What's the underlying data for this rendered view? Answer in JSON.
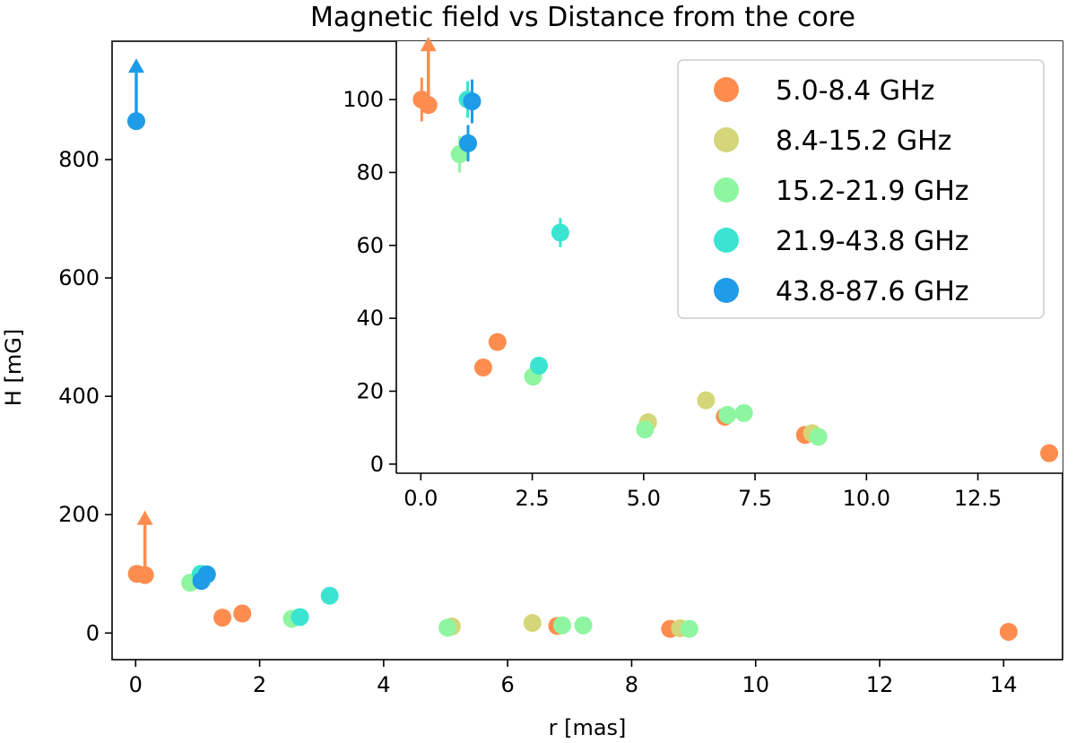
{
  "chart_data": [
    {
      "id": "main",
      "type": "scatter",
      "title": "Magnetic field vs Distance from the core",
      "xlabel": "r [mas]",
      "ylabel": "H [mG]",
      "xlim": [
        -0.38,
        14.95
      ],
      "ylim": [
        -45,
        1000
      ],
      "xticks": [
        0,
        2,
        4,
        6,
        8,
        10,
        12,
        14
      ],
      "yticks": [
        0,
        200,
        400,
        600,
        800
      ],
      "series": [
        {
          "name": "5.0-8.4 GHz",
          "color": "#fd8d4e",
          "points": [
            [
              0.02,
              100
            ],
            [
              0.15,
              98
            ],
            [
              1.4,
              26
            ],
            [
              1.72,
              33
            ],
            [
              6.8,
              12
            ],
            [
              8.62,
              7
            ],
            [
              14.08,
              2
            ]
          ],
          "limits": [
            [
              0.15,
              101
            ]
          ]
        },
        {
          "name": "8.4-15.2 GHz",
          "color": "#d4d67a",
          "points": [
            [
              5.1,
              11
            ],
            [
              6.4,
              17
            ],
            [
              8.78,
              8
            ]
          ]
        },
        {
          "name": "15.2-21.9 GHz",
          "color": "#8ef6a0",
          "points": [
            [
              0.88,
              85
            ],
            [
              2.52,
              24
            ],
            [
              5.03,
              9
            ],
            [
              6.88,
              13
            ],
            [
              7.22,
              13
            ],
            [
              8.93,
              7
            ]
          ]
        },
        {
          "name": "21.9-43.8 GHz",
          "color": "#3be4d0",
          "points": [
            [
              1.05,
              100
            ],
            [
              2.65,
              27
            ],
            [
              3.13,
              63
            ]
          ]
        },
        {
          "name": "43.8-87.6 GHz",
          "color": "#1e9ce8",
          "points": [
            [
              0.01,
              865
            ],
            [
              1.06,
              88
            ],
            [
              1.15,
              99
            ]
          ],
          "limits": [
            [
              0.01,
              865
            ]
          ]
        }
      ]
    },
    {
      "id": "inset",
      "type": "scatter",
      "xlim": [
        -0.55,
        14.4
      ],
      "ylim": [
        -2.5,
        116
      ],
      "xticks": [
        0.0,
        2.5,
        5.0,
        7.5,
        10.0,
        12.5
      ],
      "xtick_labels": [
        "0.0",
        "2.5",
        "5.0",
        "7.5",
        "10.0",
        "12.5"
      ],
      "yticks": [
        0,
        20,
        40,
        60,
        80,
        100
      ],
      "legend_position": "upper right",
      "series": [
        {
          "name": "5.0-8.4 GHz",
          "color": "#fd8d4e",
          "points": [
            [
              0.02,
              100
            ],
            [
              0.17,
              98.5
            ],
            [
              1.4,
              26.5
            ],
            [
              1.72,
              33.5
            ],
            [
              6.82,
              13
            ],
            [
              8.62,
              8
            ],
            [
              14.1,
              3
            ]
          ],
          "limits": [
            [
              0.17,
              100
            ]
          ],
          "errors": [
            [
              0.02,
              100,
              6
            ]
          ]
        },
        {
          "name": "8.4-15.2 GHz",
          "color": "#d4d67a",
          "points": [
            [
              5.1,
              11.5
            ],
            [
              6.4,
              17.5
            ],
            [
              8.78,
              8.5
            ]
          ]
        },
        {
          "name": "15.2-21.9 GHz",
          "color": "#8ef6a0",
          "points": [
            [
              0.87,
              85
            ],
            [
              2.52,
              24
            ],
            [
              5.03,
              9.5
            ],
            [
              6.88,
              13.5
            ],
            [
              7.25,
              14
            ],
            [
              8.92,
              7.5
            ]
          ],
          "errors": [
            [
              0.87,
              85,
              5
            ]
          ]
        },
        {
          "name": "21.9-43.8 GHz",
          "color": "#3be4d0",
          "points": [
            [
              1.05,
              100
            ],
            [
              2.65,
              27
            ],
            [
              3.13,
              63.5
            ]
          ],
          "errors": [
            [
              1.05,
              100,
              5
            ],
            [
              3.13,
              63.5,
              4
            ]
          ]
        },
        {
          "name": "43.8-87.6 GHz",
          "color": "#1e9ce8",
          "points": [
            [
              1.06,
              88
            ],
            [
              1.15,
              99.5
            ]
          ],
          "errors": [
            [
              1.06,
              88,
              5
            ],
            [
              1.15,
              99.5,
              6
            ]
          ]
        }
      ]
    }
  ]
}
